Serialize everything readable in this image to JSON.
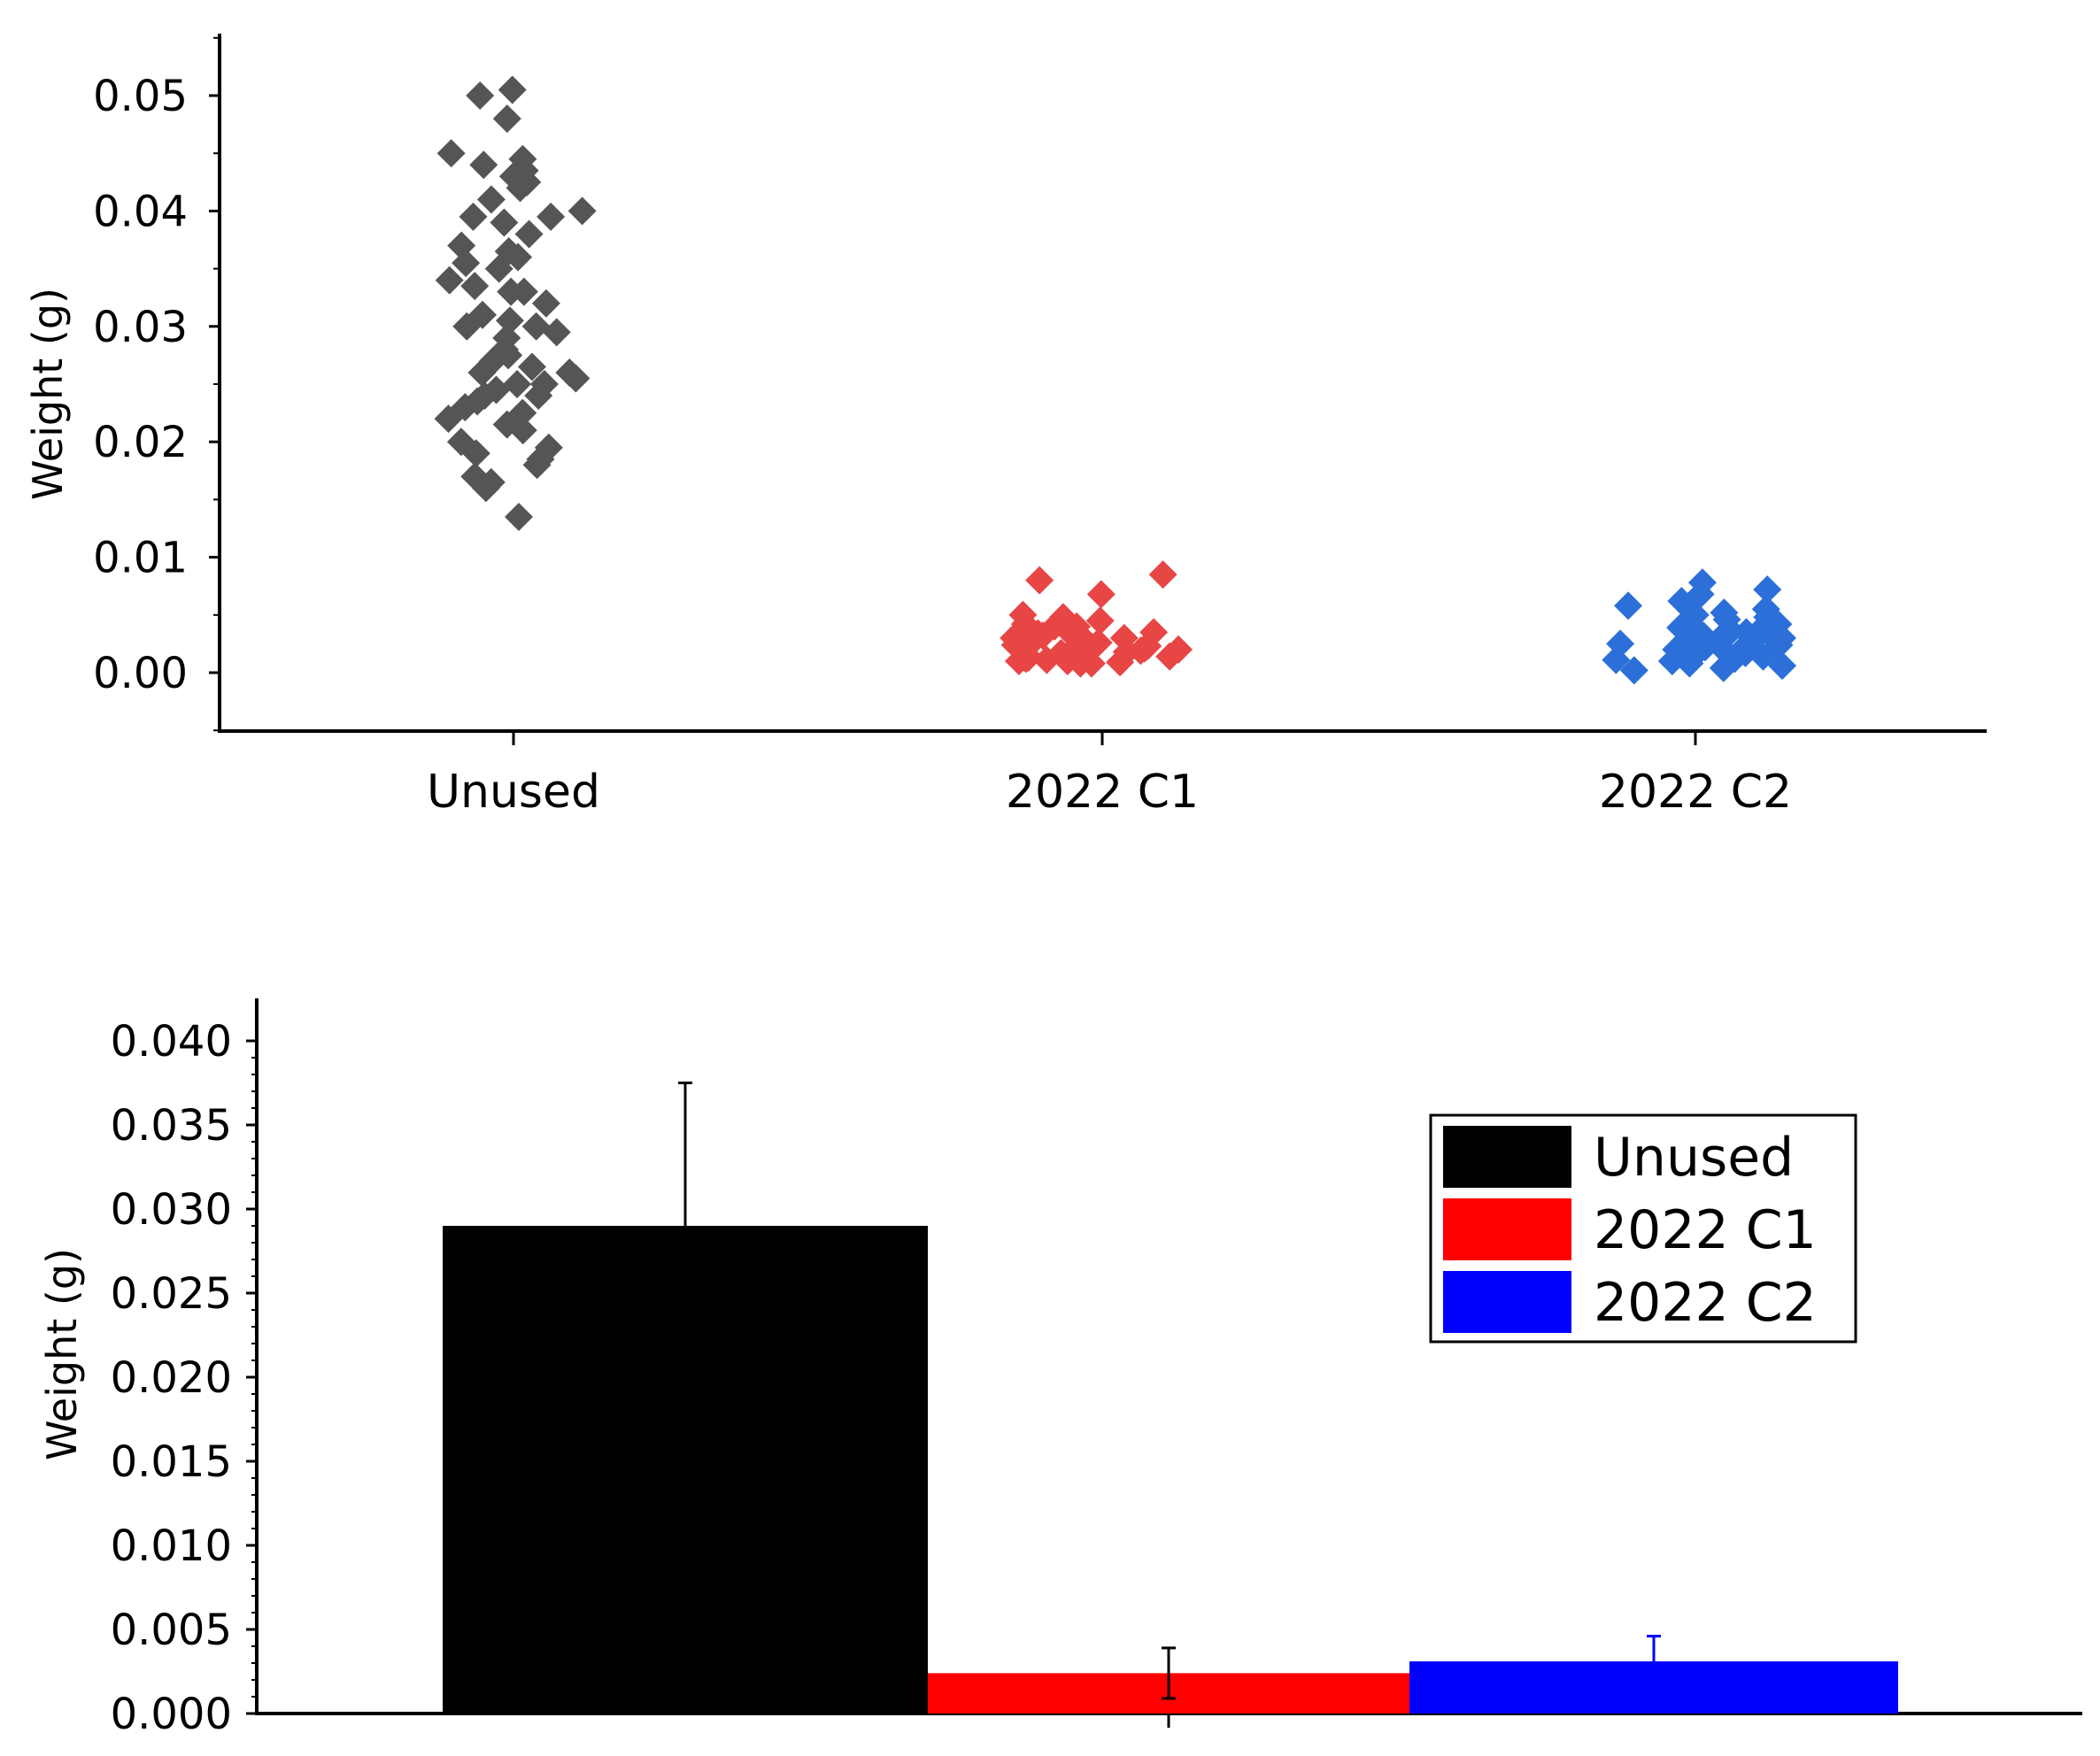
{
  "chart_data": [
    {
      "type": "scatter",
      "title": "",
      "xlabel": "",
      "ylabel": "Weight (g)",
      "ylim": [
        -0.005,
        0.055
      ],
      "yticks": [
        "0.00",
        "0.01",
        "0.02",
        "0.03",
        "0.04",
        "0.05"
      ],
      "categories": [
        "Unused",
        "2022 C1",
        "2022 C2"
      ],
      "grid": false,
      "series": [
        {
          "category": "Unused",
          "color": "#555555",
          "marker": "diamond",
          "values": [
            0.0505,
            0.05,
            0.048,
            0.045,
            0.0445,
            0.044,
            0.0435,
            0.043,
            0.0425,
            0.042,
            0.041,
            0.04,
            0.0395,
            0.0395,
            0.039,
            0.038,
            0.037,
            0.0365,
            0.036,
            0.0355,
            0.035,
            0.034,
            0.0335,
            0.033,
            0.033,
            0.032,
            0.031,
            0.0305,
            0.03,
            0.03,
            0.0295,
            0.029,
            0.028,
            0.0275,
            0.027,
            0.0265,
            0.026,
            0.026,
            0.0255,
            0.025,
            0.025,
            0.0245,
            0.024,
            0.024,
            0.0235,
            0.023,
            0.0225,
            0.022,
            0.0215,
            0.021,
            0.02,
            0.0195,
            0.019,
            0.0185,
            0.018,
            0.017,
            0.0165,
            0.016,
            0.0135
          ]
        },
        {
          "category": "2022 C1",
          "color": "#e84545",
          "marker": "diamond",
          "values": [
            0.0085,
            0.008,
            0.0068,
            0.005,
            0.0048,
            0.0045,
            0.0042,
            0.004,
            0.004,
            0.0038,
            0.0035,
            0.0034,
            0.0032,
            0.003,
            0.003,
            0.0029,
            0.0028,
            0.0027,
            0.0026,
            0.0025,
            0.0024,
            0.0023,
            0.0022,
            0.0021,
            0.002,
            0.002,
            0.0019,
            0.0018,
            0.0017,
            0.0016,
            0.0015,
            0.0014,
            0.0013,
            0.0012,
            0.0011,
            0.001,
            0.001,
            0.0009,
            0.0008,
            0.0008
          ]
        },
        {
          "category": "2022 C2",
          "color": "#2c6fd8",
          "marker": "diamond",
          "values": [
            0.0078,
            0.0072,
            0.0068,
            0.0062,
            0.0058,
            0.0055,
            0.0052,
            0.005,
            0.0048,
            0.0046,
            0.0044,
            0.0042,
            0.004,
            0.0039,
            0.0038,
            0.0036,
            0.0035,
            0.0034,
            0.0032,
            0.003,
            0.0029,
            0.0028,
            0.0026,
            0.0025,
            0.0024,
            0.0022,
            0.0021,
            0.002,
            0.0018,
            0.0017,
            0.0016,
            0.0015,
            0.0014,
            0.0012,
            0.0011,
            0.001,
            0.0008,
            0.0006,
            0.0004,
            0.0002
          ]
        }
      ]
    },
    {
      "type": "bar",
      "title": "",
      "xlabel": "",
      "ylabel": "Weight (g)",
      "ylim": [
        0,
        0.042
      ],
      "yticks": [
        "0.000",
        "0.005",
        "0.010",
        "0.015",
        "0.020",
        "0.025",
        "0.030",
        "0.035",
        "0.040"
      ],
      "grid": false,
      "legend_position": "top-right",
      "series": [
        {
          "name": "Unused",
          "value": 0.029,
          "error": 0.0085,
          "color": "#000000"
        },
        {
          "name": "2022  C1",
          "value": 0.0024,
          "error": 0.0015,
          "color": "#ff0000"
        },
        {
          "name": "2022  C2",
          "value": 0.0031,
          "error": 0.0015,
          "color": "#0000ff"
        }
      ]
    }
  ]
}
